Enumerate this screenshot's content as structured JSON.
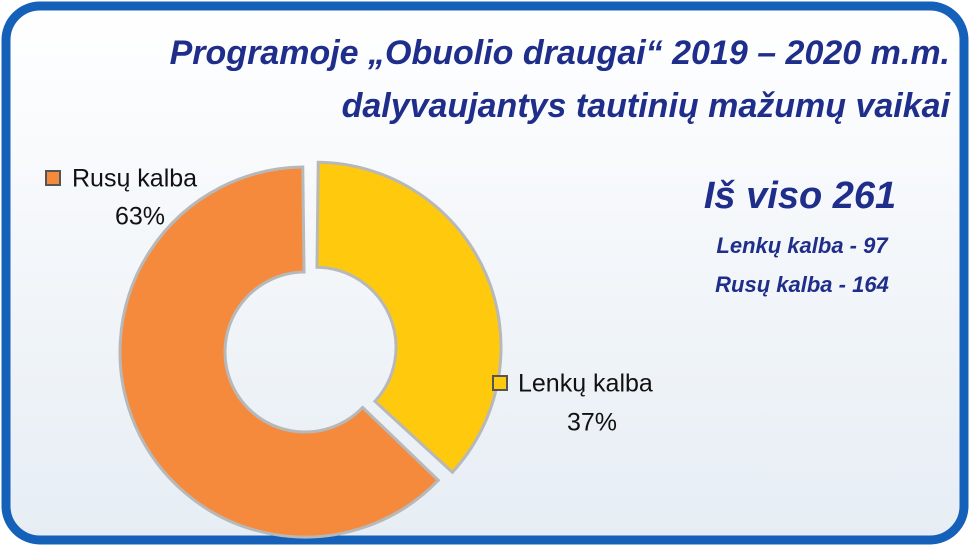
{
  "chart_data": {
    "type": "donut",
    "title": [
      "Programoje „Obuolio draugai“  2019 – 2020 m.m.",
      "dalyvaujantys  tautinių mažumų vaikai"
    ],
    "categories": [
      "Lenkų kalba",
      "Rusų kalba"
    ],
    "values": [
      37,
      63
    ],
    "value_labels": [
      "37%",
      "63%"
    ],
    "colors": [
      "#ffc90e",
      "#f58a3c"
    ],
    "annotations": [
      "Iš viso 261",
      "Lenkų kalba - 97",
      "Rusų kalba - 164"
    ]
  }
}
